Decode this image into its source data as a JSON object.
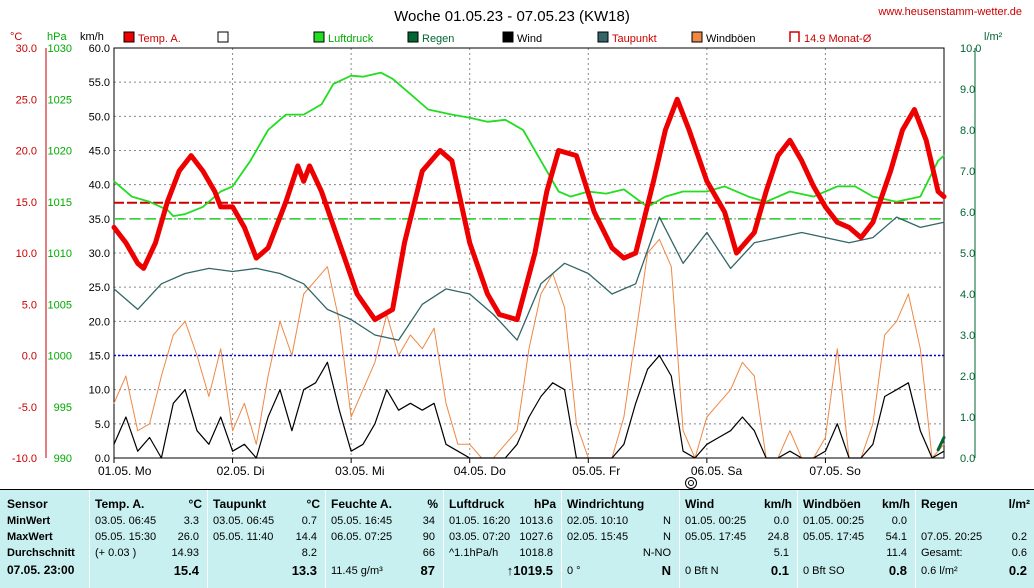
{
  "colors": {
    "temp": "#ee0000",
    "luftdruck": "#22dd22",
    "regen": "#006633",
    "wind": "#000000",
    "taupunkt": "#336666",
    "windboeen": "#ee8844",
    "monat": "#cc0000",
    "frame": "#000000",
    "zero": "#0000cc"
  },
  "header": {
    "title": "Woche 01.05.23 - 07.05.23 (KW18)",
    "url": "www.heusenstamm-wetter.de"
  },
  "legend": [
    "Temp. A.",
    "",
    "Luftdruck",
    "Regen",
    "Wind",
    "Taupunkt",
    "Windböen",
    "14.9 Monat-Ø"
  ],
  "axis_units": {
    "temp": "°C",
    "hpa": "hPa",
    "kmh": "km/h",
    "rain": "l/m²"
  },
  "chart_data": {
    "type": "line",
    "x_labels": [
      "01.05. Mo",
      "02.05. Di",
      "03.05. Mi",
      "04.05. Do",
      "05.05. Fr",
      "06.05. Sa",
      "07.05. So"
    ],
    "x_range": [
      0,
      7
    ],
    "y_axes": {
      "temp": {
        "ticks": [
          "30.0",
          "25.0",
          "20.0",
          "15.0",
          "10.0",
          "5.0",
          "0.0",
          "-5.0",
          "-10.0"
        ],
        "range": [
          -10,
          30
        ]
      },
      "hpa": {
        "ticks": [
          "1030",
          "1025",
          "1020",
          "1015",
          "1010",
          "1005",
          "1000",
          "995",
          "990"
        ],
        "range": [
          990,
          1030
        ]
      },
      "kmh": {
        "ticks": [
          "60.0",
          "55.0",
          "50.0",
          "45.0",
          "40.0",
          "35.0",
          "30.0",
          "25.0",
          "20.0",
          "15.0",
          "10.0",
          "5.0",
          "0.0"
        ],
        "range": [
          0,
          60
        ]
      },
      "rain": {
        "ticks": [
          "10.0",
          "9.0",
          "8.0",
          "7.0",
          "6.0",
          "5.0",
          "4.0",
          "3.0",
          "2.0",
          "1.0",
          "0.0"
        ],
        "range": [
          0,
          10
        ]
      }
    },
    "monat_avg_temp": 14.9,
    "ref_line_kmh": 35,
    "series": [
      {
        "name": "Temp. A.",
        "axis": "temp",
        "x": [
          0,
          0.1,
          0.2,
          0.25,
          0.35,
          0.45,
          0.55,
          0.65,
          0.75,
          0.85,
          0.9,
          1.0,
          1.1,
          1.2,
          1.3,
          1.45,
          1.55,
          1.6,
          1.65,
          1.75,
          1.9,
          2.05,
          2.2,
          2.35,
          2.45,
          2.6,
          2.75,
          2.85,
          3.0,
          3.15,
          3.25,
          3.4,
          3.55,
          3.65,
          3.75,
          3.9,
          4.05,
          4.2,
          4.3,
          4.4,
          4.55,
          4.65,
          4.75,
          4.85,
          5.0,
          5.15,
          5.25,
          5.4,
          5.5,
          5.6,
          5.7,
          5.8,
          5.9,
          6.0,
          6.1,
          6.2,
          6.3,
          6.4,
          6.55,
          6.65,
          6.75,
          6.85,
          6.95,
          7.0
        ],
        "y": [
          12.5,
          11,
          9,
          8.5,
          11,
          15,
          18,
          19.5,
          18,
          16,
          14.5,
          14.5,
          12.5,
          9.5,
          10.5,
          15,
          18.5,
          17,
          18.5,
          16,
          11,
          6,
          3.5,
          4.5,
          11,
          18,
          20,
          19,
          11,
          6,
          4,
          3.5,
          10,
          16,
          20,
          19.5,
          14,
          10.5,
          9.5,
          10,
          17,
          22,
          25,
          22,
          17,
          14,
          10,
          12,
          16,
          19.5,
          21,
          19,
          16.5,
          14.5,
          13,
          12.5,
          11.5,
          13,
          18,
          22,
          24,
          21,
          16,
          15.5
        ]
      },
      {
        "name": "Luftdruck",
        "axis": "hpa",
        "x": [
          0,
          0.15,
          0.3,
          0.45,
          0.5,
          0.6,
          0.75,
          0.9,
          1.0,
          1.15,
          1.3,
          1.45,
          1.6,
          1.75,
          1.85,
          2.0,
          2.1,
          2.25,
          2.35,
          2.5,
          2.65,
          2.85,
          3.0,
          3.15,
          3.3,
          3.45,
          3.6,
          3.75,
          3.85,
          4.0,
          4.15,
          4.3,
          4.5,
          4.65,
          4.8,
          5.0,
          5.15,
          5.35,
          5.5,
          5.7,
          5.9,
          6.0,
          6.1,
          6.25,
          6.4,
          6.6,
          6.8,
          6.95,
          7.0
        ],
        "y": [
          1017,
          1015.5,
          1015,
          1014.2,
          1013.6,
          1013.8,
          1014.5,
          1016,
          1016.5,
          1019,
          1022,
          1023.5,
          1023.5,
          1024.5,
          1026.5,
          1027.3,
          1027.2,
          1027.6,
          1027,
          1025.5,
          1024,
          1023.5,
          1023.2,
          1022.8,
          1023,
          1022,
          1019,
          1016,
          1015.5,
          1016,
          1015.8,
          1016.2,
          1014.5,
          1015.5,
          1016,
          1016,
          1016.5,
          1015.5,
          1015,
          1016,
          1015.5,
          1016,
          1016.5,
          1016.5,
          1015.5,
          1015,
          1015.5,
          1019,
          1019.5
        ]
      },
      {
        "name": "Taupunkt",
        "axis": "temp",
        "x": [
          0,
          0.2,
          0.4,
          0.6,
          0.8,
          1.0,
          1.2,
          1.4,
          1.6,
          1.8,
          2.0,
          2.2,
          2.4,
          2.6,
          2.8,
          3.0,
          3.2,
          3.4,
          3.6,
          3.8,
          4.0,
          4.2,
          4.4,
          4.6,
          4.8,
          5.0,
          5.2,
          5.4,
          5.6,
          5.8,
          6.0,
          6.2,
          6.4,
          6.6,
          6.8,
          7.0
        ],
        "y": [
          6.5,
          4.5,
          7,
          8,
          8.5,
          8.2,
          8.5,
          8,
          7,
          4.5,
          3.5,
          2,
          1.5,
          5,
          6.5,
          6,
          4,
          1.5,
          7,
          9,
          8,
          6,
          7,
          13.5,
          9,
          12,
          8.5,
          11,
          11.5,
          12,
          11.5,
          11,
          11.5,
          13.5,
          12.5,
          13
        ]
      },
      {
        "name": "Wind",
        "axis": "kmh",
        "x": [
          0,
          0.1,
          0.2,
          0.3,
          0.4,
          0.5,
          0.6,
          0.7,
          0.8,
          0.9,
          1.0,
          1.1,
          1.2,
          1.3,
          1.4,
          1.5,
          1.6,
          1.7,
          1.8,
          1.9,
          2.0,
          2.1,
          2.2,
          2.3,
          2.4,
          2.5,
          2.6,
          2.7,
          2.8,
          2.9,
          3.0,
          3.1,
          3.2,
          3.3,
          3.4,
          3.5,
          3.6,
          3.7,
          3.8,
          3.9,
          4.0,
          4.1,
          4.2,
          4.3,
          4.4,
          4.5,
          4.6,
          4.7,
          4.8,
          4.9,
          5.0,
          5.1,
          5.2,
          5.3,
          5.4,
          5.5,
          5.6,
          5.7,
          5.8,
          5.9,
          6.0,
          6.1,
          6.2,
          6.3,
          6.4,
          6.5,
          6.6,
          6.7,
          6.8,
          6.9,
          7.0
        ],
        "y": [
          2,
          6,
          1,
          3,
          0,
          8,
          10,
          4,
          2,
          6,
          1,
          2,
          0,
          6,
          10,
          4,
          10,
          11,
          14,
          7,
          1,
          2,
          5,
          10,
          7,
          8,
          7,
          8,
          2,
          1,
          0,
          0,
          0,
          0,
          2,
          6,
          9,
          11,
          10,
          0,
          0,
          0,
          0,
          2,
          8,
          13,
          15,
          12,
          1,
          0,
          2,
          3,
          4,
          6,
          4,
          0,
          0,
          1,
          0,
          0,
          1,
          5,
          0,
          0,
          2,
          9,
          10,
          11,
          4,
          0,
          1
        ]
      },
      {
        "name": "Windböen",
        "axis": "kmh",
        "x": [
          0,
          0.1,
          0.2,
          0.3,
          0.4,
          0.5,
          0.6,
          0.7,
          0.8,
          0.9,
          1.0,
          1.1,
          1.2,
          1.3,
          1.4,
          1.5,
          1.6,
          1.7,
          1.8,
          1.9,
          2.0,
          2.1,
          2.2,
          2.3,
          2.4,
          2.5,
          2.6,
          2.7,
          2.8,
          2.9,
          3.0,
          3.1,
          3.2,
          3.3,
          3.4,
          3.5,
          3.6,
          3.7,
          3.8,
          3.9,
          4.0,
          4.1,
          4.2,
          4.3,
          4.4,
          4.5,
          4.6,
          4.7,
          4.8,
          4.9,
          5.0,
          5.1,
          5.2,
          5.3,
          5.4,
          5.5,
          5.6,
          5.7,
          5.8,
          5.9,
          6.0,
          6.1,
          6.2,
          6.3,
          6.4,
          6.5,
          6.6,
          6.7,
          6.8,
          6.9,
          7.0
        ],
        "y": [
          8,
          12,
          4,
          5,
          12,
          18,
          20,
          15,
          9,
          16,
          4,
          8,
          2,
          12,
          20,
          15,
          24,
          26,
          28,
          20,
          6,
          10,
          14,
          21,
          15,
          18,
          16,
          19,
          8,
          2,
          2,
          0,
          0,
          2,
          4,
          16,
          24,
          27,
          22,
          5,
          0,
          0,
          0,
          6,
          18,
          30,
          32,
          28,
          4,
          0,
          6,
          8,
          10,
          14,
          12,
          0,
          0,
          4,
          0,
          0,
          3,
          16,
          0,
          0,
          5,
          18,
          20,
          24,
          16,
          0,
          2
        ]
      },
      {
        "name": "Regen",
        "axis": "rain",
        "x": [
          6.95,
          7.0
        ],
        "y": [
          0.2,
          0.5
        ]
      }
    ]
  },
  "table": {
    "row_labels": {
      "sensor": "Sensor",
      "min": "MinWert",
      "max": "MaxWert",
      "avg": "Durchschnitt",
      "date": "07.05. 23:00"
    },
    "temp": {
      "title": "Temp. A.",
      "unit": "°C",
      "min_time": "03.05. 06:45",
      "min_val": "3.3",
      "max_time": "05.05. 15:30",
      "max_val": "26.0",
      "avg_note": "(+ 0.03 )",
      "avg_val": "14.93",
      "current": "15.4"
    },
    "dew": {
      "title": "Taupunkt",
      "unit": "°C",
      "min_time": "03.05. 06:45",
      "min_val": "0.7",
      "max_time": "05.05. 11:40",
      "max_val": "14.4",
      "avg_val": "8.2",
      "current": "13.3"
    },
    "hum": {
      "title": "Feuchte A.",
      "unit": "%",
      "min_time": "05.05. 16:45",
      "min_val": "34",
      "max_time": "06.05. 07:25",
      "max_val": "90",
      "avg_val": "66",
      "abs": "11.45 g/m³",
      "current": "87"
    },
    "press": {
      "title": "Luftdruck",
      "unit": "hPa",
      "min_time": "01.05. 16:20",
      "min_val": "1013.6",
      "max_time": "03.05. 07:20",
      "max_val": "1027.6",
      "trend": "^1.1hPa/h",
      "avg_val": "1018.8",
      "current": "↑1019.5"
    },
    "dir": {
      "title": "Windrichtung",
      "min_time": "02.05. 10:10",
      "min_val": "N",
      "max_time": "02.05. 15:45",
      "max_val": "N",
      "avg_val": "N-NO",
      "deg": "0 °",
      "current": "N"
    },
    "wind": {
      "title": "Wind",
      "unit": "km/h",
      "min_time": "01.05. 00:25",
      "min_val": "0.0",
      "max_time": "05.05. 17:45",
      "max_val": "24.8",
      "avg_val": "5.1",
      "bft": "0 Bft N",
      "current": "0.1"
    },
    "gust": {
      "title": "Windböen",
      "unit": "km/h",
      "min_time": "01.05. 00:25",
      "min_val": "0.0",
      "max_time": "05.05. 17:45",
      "max_val": "54.1",
      "avg_val": "11.4",
      "bft": "0 Bft SO",
      "current": "0.8"
    },
    "rain": {
      "title": "Regen",
      "unit": "l/m²",
      "max_time": "07.05. 20:25",
      "max_val": "0.2",
      "total_label": "Gesamt:",
      "total_val": "0.6",
      "cur_label": "0.6 l/m²",
      "current": "0.2"
    }
  }
}
